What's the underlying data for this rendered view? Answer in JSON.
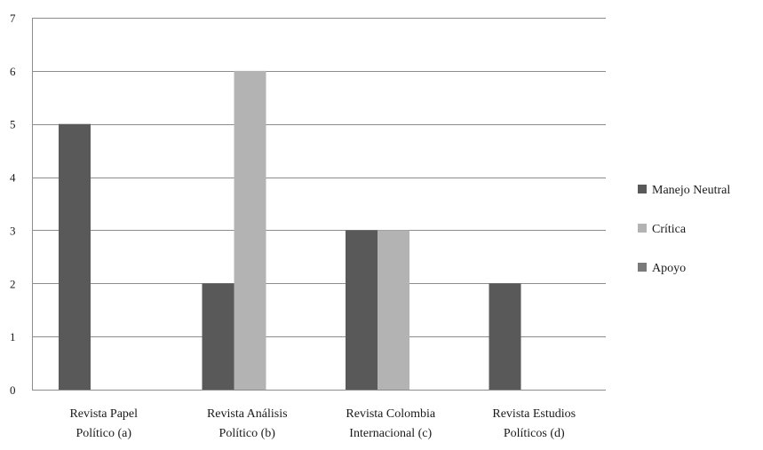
{
  "chart_data": {
    "type": "bar",
    "title": "",
    "xlabel": "",
    "ylabel": "",
    "ylim": [
      0,
      7
    ],
    "yticks": [
      0,
      1,
      2,
      3,
      4,
      5,
      6,
      7
    ],
    "grid": true,
    "legend_position": "right",
    "categories": [
      [
        "Revista Papel",
        "Político (a)"
      ],
      [
        "Revista Análisis",
        "Político (b)"
      ],
      [
        "Revista Colombia",
        "Internacional (c)"
      ],
      [
        "Revista Estudios",
        "Políticos (d)"
      ]
    ],
    "series": [
      {
        "name": "Manejo Neutral",
        "color": "#595959",
        "values": [
          5,
          2,
          3,
          2
        ]
      },
      {
        "name": "Crítica",
        "color": "#b3b3b3",
        "values": [
          0,
          6,
          3,
          0
        ]
      },
      {
        "name": "Apoyo",
        "color": "#7a7a7a",
        "values": [
          0,
          0,
          0,
          0
        ]
      }
    ]
  }
}
